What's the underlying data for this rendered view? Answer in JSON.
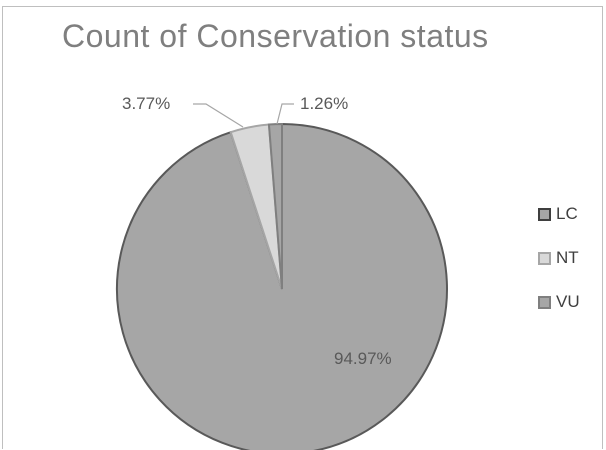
{
  "chart_data": {
    "type": "pie",
    "title": "Count of Conservation status",
    "categories": [
      "LC",
      "NT",
      "VU"
    ],
    "values": [
      94.97,
      3.77,
      1.26
    ],
    "data_labels": [
      "94.97%",
      "3.77%",
      "1.26%"
    ],
    "legend_position": "right",
    "colors": [
      "#a6a6a6",
      "#d9d9d9",
      "#a6a6a6"
    ]
  }
}
